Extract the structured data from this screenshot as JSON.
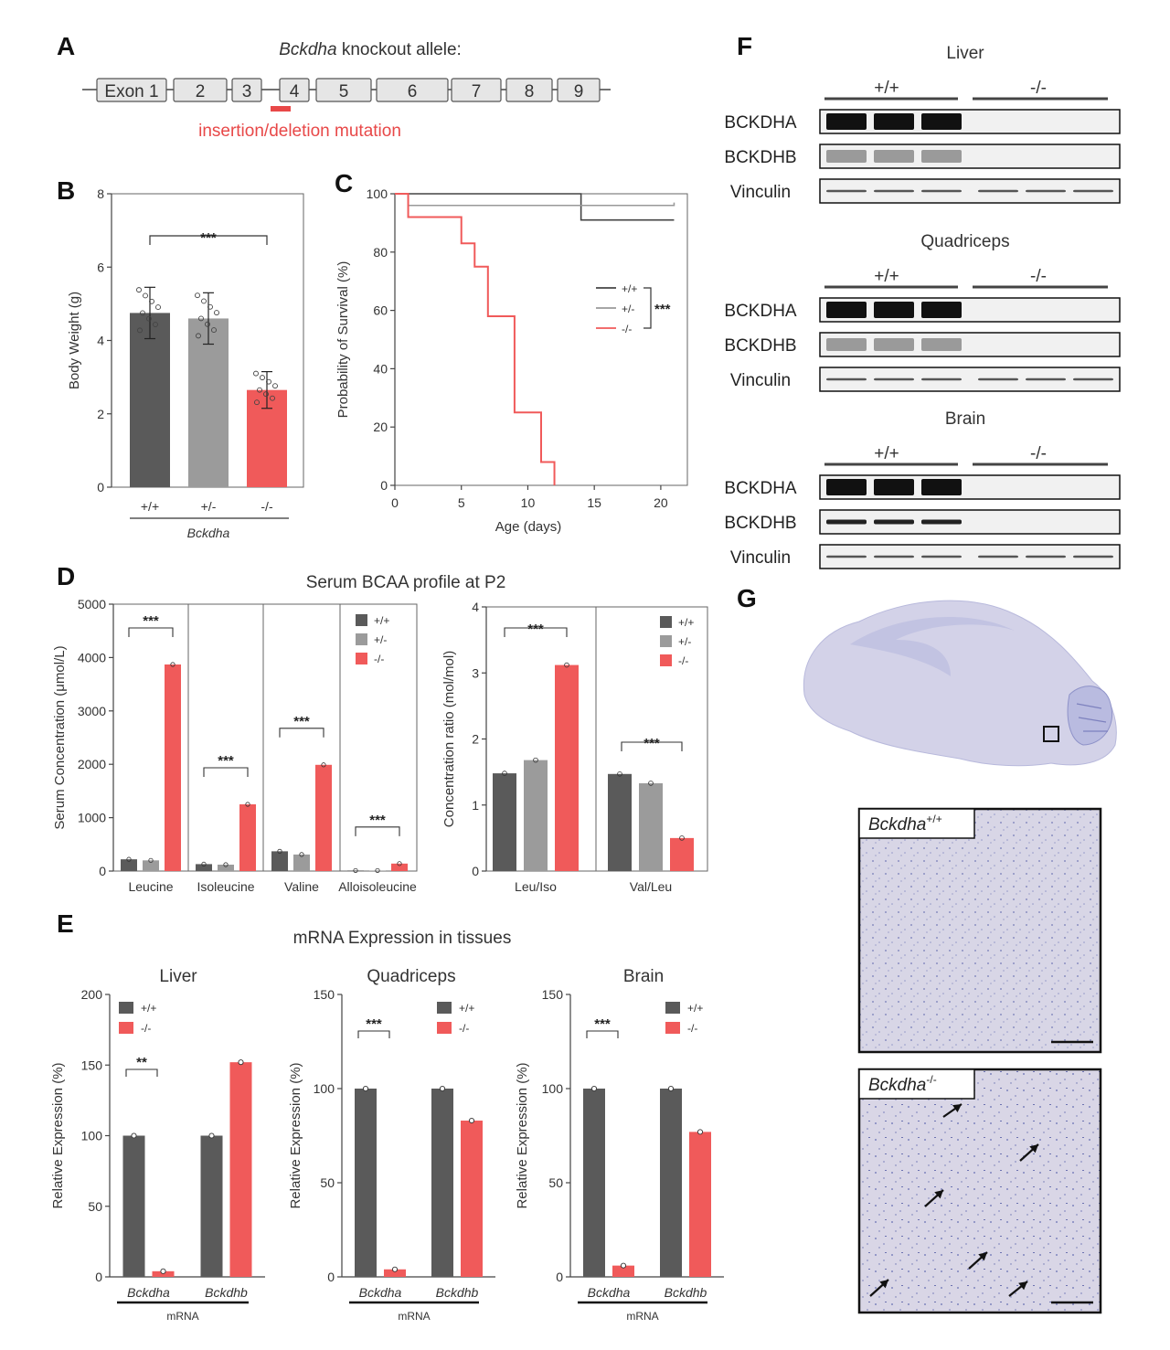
{
  "colors": {
    "wt": "#5a5a5a",
    "het": "#9b9b9b",
    "ko": "#f05a5a",
    "mut": "#e84848"
  },
  "panelA": {
    "label": "A",
    "title_gene": "Bckdha",
    "title_rest": " knockout allele:",
    "exons": [
      "Exon 1",
      "2",
      "3",
      "4",
      "5",
      "6",
      "7",
      "8",
      "9"
    ],
    "mutation": "insertion/deletion mutation"
  },
  "panelB": {
    "label": "B",
    "chart_data": {
      "type": "bar",
      "categories": [
        "+/+",
        "+/-",
        "-/-"
      ],
      "values": [
        4.75,
        4.6,
        2.65
      ],
      "errors": [
        0.7,
        0.7,
        0.5
      ],
      "ylabel": "Body Weight (g)",
      "xlabel": "Bckdha",
      "yticks": [
        "0",
        "2",
        "4",
        "6",
        "8"
      ],
      "ylim": [
        0,
        8
      ],
      "sig": "***"
    }
  },
  "panelC": {
    "label": "C",
    "chart_data": {
      "type": "line",
      "xlabel": "Age (days)",
      "ylabel": "Probability of Survival (%)",
      "xticks": [
        "0",
        "5",
        "10",
        "15",
        "20"
      ],
      "yticks": [
        "0",
        "20",
        "40",
        "60",
        "80",
        "100"
      ],
      "xlim": [
        0,
        22
      ],
      "ylim": [
        0,
        100
      ],
      "series": [
        {
          "name": "+/+",
          "steps": [
            [
              0,
              100
            ],
            [
              14,
              100
            ],
            [
              14,
              91
            ],
            [
              21,
              91
            ]
          ]
        },
        {
          "name": "+/-",
          "steps": [
            [
              0,
              100
            ],
            [
              1,
              100
            ],
            [
              1,
              96
            ],
            [
              21,
              96
            ],
            [
              21,
              97
            ]
          ]
        },
        {
          "name": "-/-",
          "steps": [
            [
              0,
              100
            ],
            [
              1,
              100
            ],
            [
              1,
              92
            ],
            [
              5,
              92
            ],
            [
              5,
              83
            ],
            [
              6,
              83
            ],
            [
              6,
              75
            ],
            [
              7,
              75
            ],
            [
              7,
              58
            ],
            [
              9,
              58
            ],
            [
              9,
              25
            ],
            [
              11,
              25
            ],
            [
              11,
              8
            ],
            [
              12,
              8
            ],
            [
              12,
              0
            ]
          ]
        }
      ],
      "sig": "***"
    }
  },
  "panelD": {
    "label": "D",
    "title": "Serum BCAA profile at P2",
    "chart_data": [
      {
        "type": "bar",
        "ylabel": "Serum Concentration (μmol/L)",
        "yticks": [
          "0",
          "1000",
          "2000",
          "3000",
          "4000",
          "5000"
        ],
        "ylim": [
          0,
          5000
        ],
        "categories": [
          "Leucine",
          "Isoleucine",
          "Valine",
          "Alloisoleucine"
        ],
        "series": [
          {
            "name": "+/+",
            "values": [
              220,
              130,
              370,
              10
            ]
          },
          {
            "name": "+/-",
            "values": [
              200,
              120,
              310,
              10
            ]
          },
          {
            "name": "-/-",
            "values": [
              3870,
              1250,
              1990,
              140
            ]
          }
        ],
        "sig": [
          "***",
          "***",
          "***",
          "***"
        ]
      },
      {
        "type": "bar",
        "ylabel": "Concentration ratio (mol/mol)",
        "yticks": [
          "0",
          "1",
          "2",
          "3",
          "4"
        ],
        "ylim": [
          0,
          4
        ],
        "categories": [
          "Leu/Iso",
          "Val/Leu"
        ],
        "series": [
          {
            "name": "+/+",
            "values": [
              1.48,
              1.47
            ]
          },
          {
            "name": "+/-",
            "values": [
              1.68,
              1.33
            ]
          },
          {
            "name": "-/-",
            "values": [
              3.12,
              0.5
            ]
          }
        ],
        "sig": [
          "***",
          "***"
        ]
      }
    ]
  },
  "panelE": {
    "label": "E",
    "title": "mRNA Expression in tissues",
    "chart_data": [
      {
        "type": "bar",
        "title": "Liver",
        "ylabel": "Relative Expression (%)",
        "yticks": [
          "0",
          "50",
          "100",
          "150",
          "200"
        ],
        "ylim": [
          0,
          200
        ],
        "categories": [
          "Bckdha",
          "Bckdhb"
        ],
        "xlabel": "mRNA",
        "series": [
          {
            "name": "+/+",
            "values": [
              100,
              100
            ]
          },
          {
            "name": "-/-",
            "values": [
              4,
              152
            ]
          }
        ],
        "sig": "**"
      },
      {
        "type": "bar",
        "title": "Quadriceps",
        "ylabel": "Relative Expression (%)",
        "yticks": [
          "0",
          "50",
          "100",
          "150"
        ],
        "ylim": [
          0,
          150
        ],
        "categories": [
          "Bckdha",
          "Bckdhb"
        ],
        "xlabel": "mRNA",
        "series": [
          {
            "name": "+/+",
            "values": [
              100,
              100
            ]
          },
          {
            "name": "-/-",
            "values": [
              4,
              83
            ]
          }
        ],
        "sig": "***"
      },
      {
        "type": "bar",
        "title": "Brain",
        "ylabel": "Relative Expression (%)",
        "yticks": [
          "0",
          "50",
          "100",
          "150"
        ],
        "ylim": [
          0,
          150
        ],
        "categories": [
          "Bckdha",
          "Bckdhb"
        ],
        "xlabel": "mRNA",
        "series": [
          {
            "name": "+/+",
            "values": [
              100,
              100
            ]
          },
          {
            "name": "-/-",
            "values": [
              6,
              77
            ]
          }
        ],
        "sig": "***"
      }
    ]
  },
  "panelF": {
    "label": "F",
    "genotypes": [
      "+/+",
      "-/-"
    ],
    "blots": [
      {
        "tissue": "Liver",
        "rows": [
          "BCKDHA",
          "BCKDHB",
          "Vinculin"
        ]
      },
      {
        "tissue": "Quadriceps",
        "rows": [
          "BCKDHA",
          "BCKDHB",
          "Vinculin"
        ]
      },
      {
        "tissue": "Brain",
        "rows": [
          "BCKDHA",
          "BCKDHB",
          "Vinculin"
        ]
      }
    ]
  },
  "panelG": {
    "label": "G",
    "insets": [
      {
        "gene": "Bckdha",
        "sup": "+/+"
      },
      {
        "gene": "Bckdha",
        "sup": "-/-"
      }
    ]
  }
}
